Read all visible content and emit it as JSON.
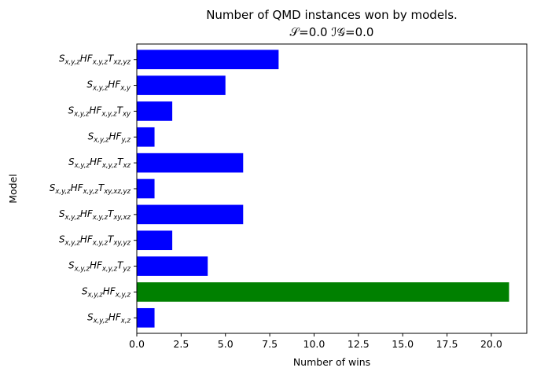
{
  "chart_data": {
    "type": "bar",
    "orientation": "horizontal",
    "title": "Number of QMD instances won by models.",
    "subtitle": "𝒮=0.0        ℐ𝒢=0.0",
    "xlabel": "Number of wins",
    "ylabel": "Model",
    "xlim": [
      0,
      22
    ],
    "xticks": [
      "0.0",
      "2.5",
      "5.0",
      "7.5",
      "10.0",
      "12.5",
      "15.0",
      "17.5",
      "20.0"
    ],
    "grid": false,
    "categories": [
      {
        "base": "S",
        "sub1": "x,y,z",
        "mid": "HF",
        "sub2": "x,y,z",
        "t": "T",
        "sub3": "xz,yz"
      },
      {
        "base": "S",
        "sub1": "x,y,z",
        "mid": "HF",
        "sub2": "x,y",
        "t": "",
        "sub3": ""
      },
      {
        "base": "S",
        "sub1": "x,y,z",
        "mid": "HF",
        "sub2": "x,y,z",
        "t": "T",
        "sub3": "xy"
      },
      {
        "base": "S",
        "sub1": "x,y,z",
        "mid": "HF",
        "sub2": "y,z",
        "t": "",
        "sub3": ""
      },
      {
        "base": "S",
        "sub1": "x,y,z",
        "mid": "HF",
        "sub2": "x,y,z",
        "t": "T",
        "sub3": "xz"
      },
      {
        "base": "S",
        "sub1": "x,y,z",
        "mid": "HF",
        "sub2": "x,y,z",
        "t": "T",
        "sub3": "xy,xz,yz"
      },
      {
        "base": "S",
        "sub1": "x,y,z",
        "mid": "HF",
        "sub2": "x,y,z",
        "t": "T",
        "sub3": "xy,xz"
      },
      {
        "base": "S",
        "sub1": "x,y,z",
        "mid": "HF",
        "sub2": "x,y,z",
        "t": "T",
        "sub3": "xy,yz"
      },
      {
        "base": "S",
        "sub1": "x,y,z",
        "mid": "HF",
        "sub2": "x,y,z",
        "t": "T",
        "sub3": "yz"
      },
      {
        "base": "S",
        "sub1": "x,y,z",
        "mid": "HF",
        "sub2": "x,y,z",
        "t": "",
        "sub3": ""
      },
      {
        "base": "S",
        "sub1": "x,y,z",
        "mid": "HF",
        "sub2": "x,z",
        "t": "",
        "sub3": ""
      }
    ],
    "values": [
      8,
      5,
      2,
      1,
      6,
      1,
      6,
      2,
      4,
      21,
      1
    ],
    "bar_colors": [
      "#0000ff",
      "#0000ff",
      "#0000ff",
      "#0000ff",
      "#0000ff",
      "#0000ff",
      "#0000ff",
      "#0000ff",
      "#0000ff",
      "#008000",
      "#0000ff"
    ]
  }
}
